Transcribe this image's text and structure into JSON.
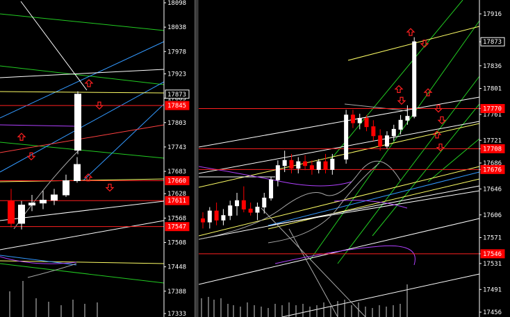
{
  "colors": {
    "background": "#000000",
    "axis": "#ffffff",
    "bull_candle": "#ffffff",
    "bear_candle": "#ff0000",
    "price_tag_hl": "#ffffff",
    "price_tag_red": "#ff0000",
    "level_line": "#ff2020",
    "channel_green": "#22cc22",
    "channel_blue": "#3399ff",
    "yellow": "#ffff66",
    "purple": "#b040ff"
  },
  "chart_data": [
    {
      "type": "candlestick",
      "name": "left-chart",
      "y_ticks": [
        "18098",
        "18038",
        "17978",
        "17923",
        "17863",
        "17803",
        "17743",
        "17683",
        "17628",
        "17568",
        "17508",
        "17448",
        "17388",
        "17333"
      ],
      "ylim": [
        17333,
        18098
      ],
      "price_tags": [
        {
          "label": "17873",
          "value": 17873,
          "style": "white"
        },
        {
          "label": "17845",
          "value": 17845,
          "style": "red"
        },
        {
          "label": "17660",
          "value": 17660,
          "style": "red"
        },
        {
          "label": "17611",
          "value": 17611,
          "style": "red"
        },
        {
          "label": "17547",
          "value": 17547,
          "style": "red"
        }
      ],
      "levels": [
        17845,
        17660,
        17611,
        17547
      ],
      "candles": [
        {
          "o": 17610,
          "h": 17640,
          "l": 17545,
          "c": 17555
        },
        {
          "o": 17555,
          "h": 17610,
          "l": 17540,
          "c": 17600
        },
        {
          "o": 17600,
          "h": 17625,
          "l": 17585,
          "c": 17605
        },
        {
          "o": 17605,
          "h": 17635,
          "l": 17590,
          "c": 17612
        },
        {
          "o": 17612,
          "h": 17640,
          "l": 17600,
          "c": 17625
        },
        {
          "o": 17625,
          "h": 17675,
          "l": 17620,
          "c": 17660
        },
        {
          "o": 17660,
          "h": 17718,
          "l": 17655,
          "c": 17700
        },
        {
          "o": 17735,
          "h": 17880,
          "l": 17725,
          "c": 17873
        }
      ],
      "arrows": [
        {
          "dir": "up",
          "value": 17768
        },
        {
          "dir": "down",
          "value": 17720
        },
        {
          "dir": "up",
          "value": 17900
        },
        {
          "dir": "down",
          "value": 17845
        },
        {
          "dir": "up",
          "value": 17668
        },
        {
          "dir": "down",
          "value": 17643
        }
      ]
    },
    {
      "type": "candlestick",
      "name": "right-chart",
      "y_ticks": [
        "17916",
        "17873",
        "17836",
        "17801",
        "17770",
        "17761",
        "17721",
        "17708",
        "17686",
        "17676",
        "17646",
        "17606",
        "17571",
        "17546",
        "17531",
        "17491",
        "17456"
      ],
      "tick_values": [
        17916,
        17873,
        17836,
        17801,
        17770,
        17761,
        17721,
        17708,
        17686,
        17676,
        17646,
        17606,
        17571,
        17546,
        17531,
        17491,
        17456
      ],
      "ylim": [
        17456,
        17916
      ],
      "price_tags": [
        {
          "label": "17873",
          "value": 17873,
          "style": "white"
        },
        {
          "label": "17770",
          "value": 17770,
          "style": "red"
        },
        {
          "label": "17708",
          "value": 17708,
          "style": "red"
        },
        {
          "label": "17676",
          "value": 17676,
          "style": "red"
        },
        {
          "label": "17546",
          "value": 17546,
          "style": "red"
        }
      ],
      "levels": [
        17770,
        17708,
        17676,
        17546
      ],
      "candles": [
        {
          "o": 17600,
          "h": 17610,
          "l": 17585,
          "c": 17595
        },
        {
          "o": 17595,
          "h": 17618,
          "l": 17585,
          "c": 17612
        },
        {
          "o": 17612,
          "h": 17625,
          "l": 17590,
          "c": 17598
        },
        {
          "o": 17598,
          "h": 17615,
          "l": 17590,
          "c": 17605
        },
        {
          "o": 17605,
          "h": 17628,
          "l": 17598,
          "c": 17620
        },
        {
          "o": 17620,
          "h": 17640,
          "l": 17605,
          "c": 17628
        },
        {
          "o": 17628,
          "h": 17650,
          "l": 17610,
          "c": 17615
        },
        {
          "o": 17615,
          "h": 17625,
          "l": 17605,
          "c": 17610
        },
        {
          "o": 17610,
          "h": 17625,
          "l": 17598,
          "c": 17618
        },
        {
          "o": 17618,
          "h": 17640,
          "l": 17608,
          "c": 17632
        },
        {
          "o": 17632,
          "h": 17665,
          "l": 17628,
          "c": 17660
        },
        {
          "o": 17660,
          "h": 17690,
          "l": 17650,
          "c": 17682
        },
        {
          "o": 17682,
          "h": 17705,
          "l": 17672,
          "c": 17690
        },
        {
          "o": 17690,
          "h": 17700,
          "l": 17670,
          "c": 17678
        },
        {
          "o": 17678,
          "h": 17695,
          "l": 17670,
          "c": 17688
        },
        {
          "o": 17688,
          "h": 17698,
          "l": 17675,
          "c": 17682
        },
        {
          "o": 17682,
          "h": 17690,
          "l": 17668,
          "c": 17676
        },
        {
          "o": 17676,
          "h": 17692,
          "l": 17670,
          "c": 17688
        },
        {
          "o": 17688,
          "h": 17700,
          "l": 17670,
          "c": 17676
        },
        {
          "o": 17676,
          "h": 17700,
          "l": 17668,
          "c": 17692
        },
        {
          "o": 17692,
          "h": 17768,
          "l": 17685,
          "c": 17760
        },
        {
          "o": 17760,
          "h": 17768,
          "l": 17740,
          "c": 17748
        },
        {
          "o": 17748,
          "h": 17762,
          "l": 17738,
          "c": 17755
        },
        {
          "o": 17755,
          "h": 17760,
          "l": 17735,
          "c": 17742
        },
        {
          "o": 17742,
          "h": 17752,
          "l": 17720,
          "c": 17728
        },
        {
          "o": 17728,
          "h": 17738,
          "l": 17705,
          "c": 17712
        },
        {
          "o": 17712,
          "h": 17735,
          "l": 17708,
          "c": 17728
        },
        {
          "o": 17728,
          "h": 17745,
          "l": 17720,
          "c": 17738
        },
        {
          "o": 17738,
          "h": 17760,
          "l": 17730,
          "c": 17752
        },
        {
          "o": 17752,
          "h": 17775,
          "l": 17745,
          "c": 17758
        },
        {
          "o": 17758,
          "h": 17880,
          "l": 17755,
          "c": 17873
        }
      ],
      "arrows": [
        {
          "dir": "up",
          "value": 17888
        },
        {
          "dir": "down",
          "value": 17870
        },
        {
          "dir": "up",
          "value": 17800
        },
        {
          "dir": "down",
          "value": 17782
        },
        {
          "dir": "up",
          "value": 17795
        },
        {
          "dir": "down",
          "value": 17770
        },
        {
          "dir": "down",
          "value": 17752
        },
        {
          "dir": "up",
          "value": 17730
        },
        {
          "dir": "down",
          "value": 17710
        }
      ]
    }
  ]
}
